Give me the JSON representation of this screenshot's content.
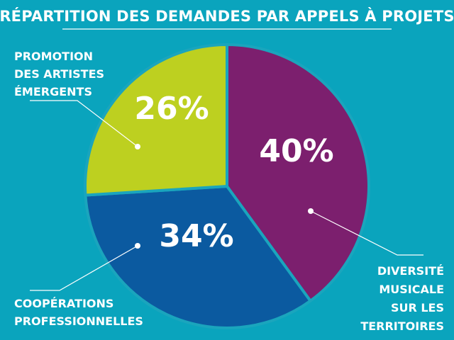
{
  "chart_data": {
    "type": "pie",
    "title": "RÉPARTITION DES DEMANDES PAR APPELS À PROJETS",
    "slices": [
      {
        "label_lines": [
          "DIVERSITÉ",
          "MUSICALE",
          "SUR LES",
          "TERRITOIRES"
        ],
        "value": 40,
        "display": "40%",
        "color": "#7c1f6e"
      },
      {
        "label_lines": [
          "COOPÉRATIONS",
          "PROFESSIONNELLES"
        ],
        "value": 34,
        "display": "34%",
        "color": "#0b5aa0"
      },
      {
        "label_lines": [
          "PROMOTION",
          "DES ARTISTES",
          "ÉMERGENTS"
        ],
        "value": 26,
        "display": "26%",
        "color": "#bdd020"
      }
    ],
    "start": "12 o'clock",
    "direction": "clockwise",
    "legend": "none"
  },
  "colors": {
    "background": "#0aa4bd",
    "text": "#ffffff",
    "separator": "#1aa5bd"
  }
}
